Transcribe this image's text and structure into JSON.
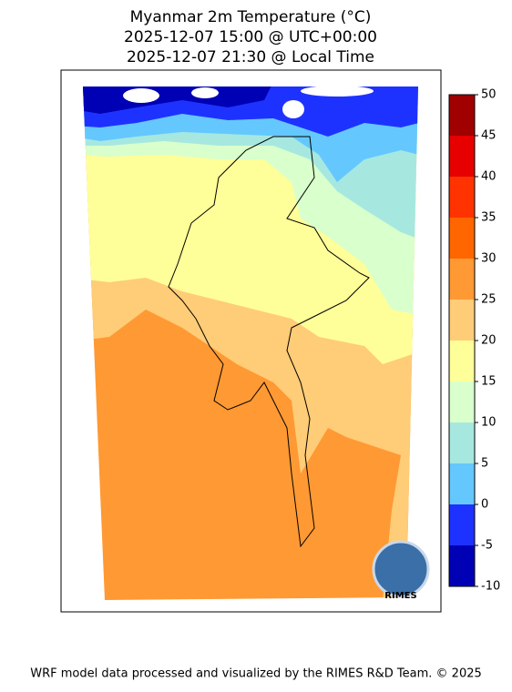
{
  "title": [
    "Myanmar 2m Temperature (°C)",
    "2025-12-07 15:00 @ UTC+00:00",
    "2025-12-07 21:30 @ Local Time"
  ],
  "colorbar": {
    "levels": [
      -10,
      -5,
      0,
      5,
      10,
      15,
      20,
      25,
      30,
      35,
      40,
      45,
      50
    ],
    "colors": [
      "#0000b4",
      "#1e32ff",
      "#64c8ff",
      "#a6e8e0",
      "#d9ffcc",
      "#ffff99",
      "#ffcc77",
      "#ff9933",
      "#ff6600",
      "#ff3300",
      "#e60000",
      "#a00000"
    ]
  },
  "logo_text": "RIMES",
  "footer": "WRF model data processed and visualized by the RIMES R&D Team. © 2025"
}
